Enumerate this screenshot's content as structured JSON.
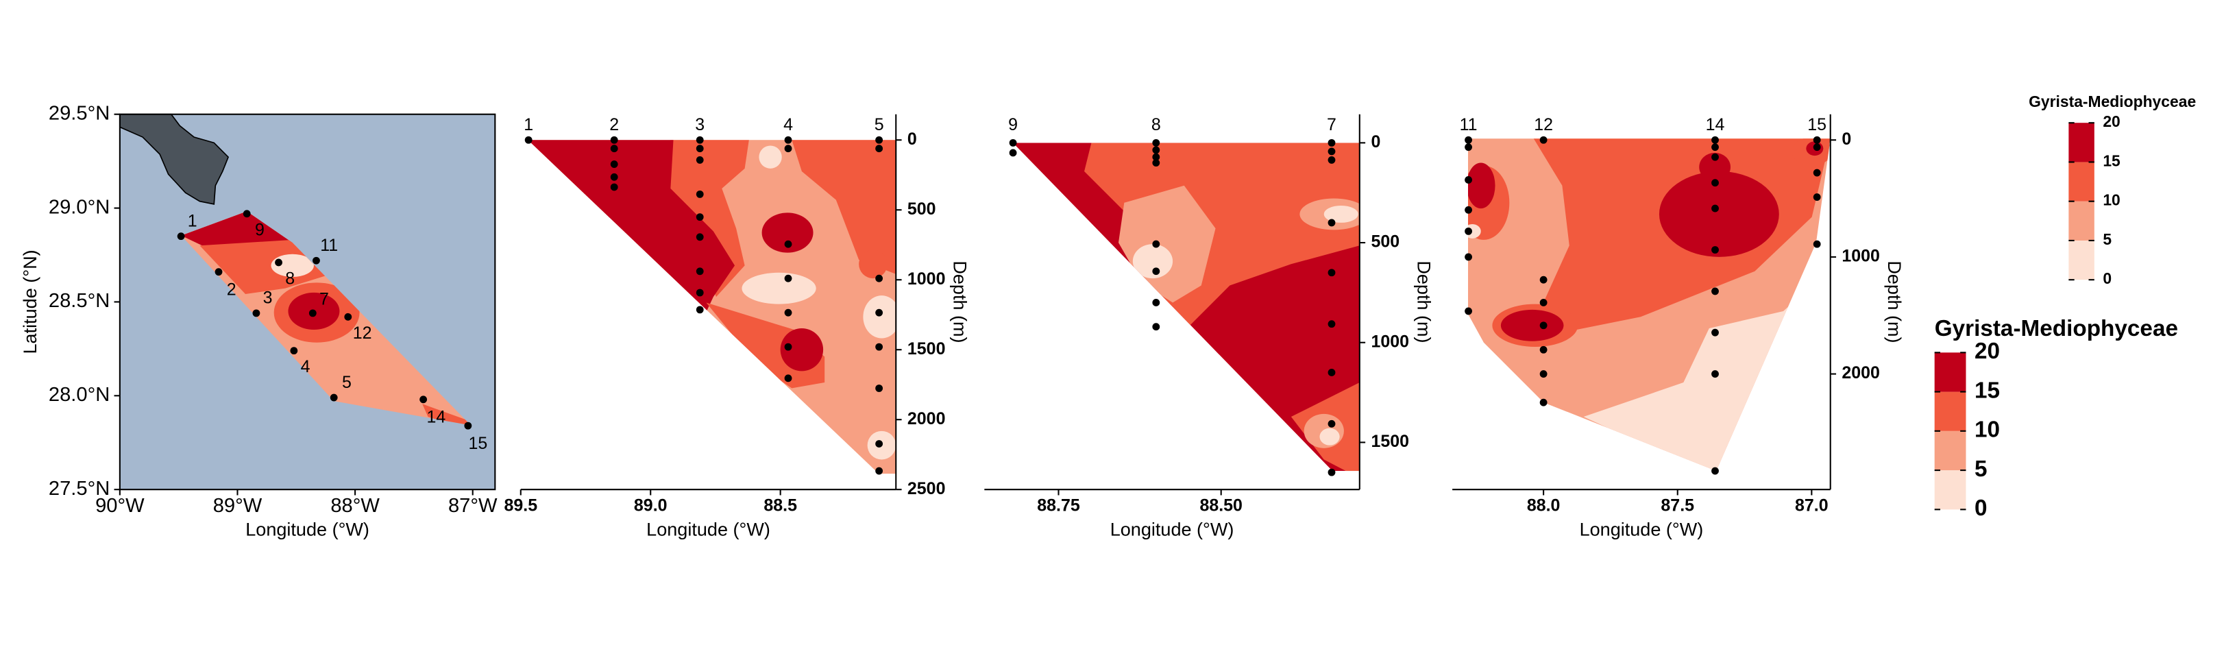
{
  "chart_data": [
    {
      "type": "map",
      "xlabel": "Longitude (°W)",
      "ylabel": "Latitude (°N)",
      "sea_color": "#a5b8cf",
      "land_color": "#4b535b",
      "xlim": [
        -90,
        -86.81
      ],
      "ylim": [
        27.5,
        29.5
      ],
      "xticks": [
        {
          "value": -90,
          "label": "90°W"
        },
        {
          "value": -89,
          "label": "89°W"
        },
        {
          "value": -88,
          "label": "88°W"
        },
        {
          "value": -87,
          "label": "87°W"
        }
      ],
      "yticks": [
        {
          "value": 27.5,
          "label": "27.5°N"
        },
        {
          "value": 28,
          "label": "28.0°N"
        },
        {
          "value": 28.5,
          "label": "28.5°N"
        },
        {
          "value": 29,
          "label": "29.0°N"
        },
        {
          "value": 29.5,
          "label": "29.5°N"
        }
      ],
      "stations": [
        {
          "label": "1",
          "lon": -89.48,
          "lat": 28.85
        },
        {
          "label": "9",
          "lon": -88.92,
          "lat": 28.97
        },
        {
          "label": "11",
          "lon": -88.33,
          "lat": 28.72
        },
        {
          "label": "2",
          "lon": -89.16,
          "lat": 28.66
        },
        {
          "label": "3",
          "lon": -88.84,
          "lat": 28.44
        },
        {
          "label": "8",
          "lon": -88.65,
          "lat": 28.71
        },
        {
          "label": "7",
          "lon": -88.36,
          "lat": 28.44
        },
        {
          "label": "12",
          "lon": -88.06,
          "lat": 28.42
        },
        {
          "label": "4",
          "lon": -88.52,
          "lat": 28.24
        },
        {
          "label": "5",
          "lon": -88.18,
          "lat": 27.99
        },
        {
          "label": "14",
          "lon": -87.42,
          "lat": 27.98
        },
        {
          "label": "15",
          "lon": -87.04,
          "lat": 27.84
        }
      ]
    },
    {
      "type": "section",
      "xlabel": "Longitude (°W)",
      "ylabel": "Depth (m)",
      "xlim": [
        89.5,
        88.055
      ],
      "ylim": [
        2500,
        -184
      ],
      "xticks": [
        89.5,
        {
          "value": 89,
          "label": "89.0"
        },
        88.5
      ],
      "yticks": [
        0,
        500,
        1000,
        1500,
        2000,
        2500
      ],
      "stations": [
        {
          "label": "1",
          "lon": 89.47,
          "depths": [
            0
          ]
        },
        {
          "label": "2",
          "lon": 89.14,
          "depths": [
            0,
            61,
            173,
            265,
            337
          ]
        },
        {
          "label": "3",
          "lon": 88.81,
          "depths": [
            0,
            61,
            143,
            388,
            551,
            694,
            939,
            1092,
            1214
          ]
        },
        {
          "label": "4",
          "lon": 88.47,
          "depths": [
            0,
            61,
            745,
            990,
            1235,
            1480,
            1704
          ]
        },
        {
          "label": "5",
          "lon": 88.12,
          "depths": [
            0,
            61,
            990,
            1235,
            1480,
            1776,
            2173,
            2367
          ]
        }
      ]
    },
    {
      "type": "section",
      "xlabel": "Longitude (°W)",
      "ylabel": "Depth (m)",
      "xlim": [
        88.864,
        88.287
      ],
      "ylim": [
        1736,
        -143
      ],
      "xticks": [
        88.75,
        {
          "value": 88.5,
          "label": "88.50"
        }
      ],
      "yticks": [
        0,
        500,
        1000,
        1500
      ],
      "stations": [
        {
          "label": "9",
          "lon": 88.82,
          "depths": [
            0,
            50
          ]
        },
        {
          "label": "8",
          "lon": 88.6,
          "depths": [
            0,
            36,
            71,
            100,
            507,
            643,
            800,
            921
          ]
        },
        {
          "label": "7",
          "lon": 88.33,
          "depths": [
            0,
            43,
            86,
            400,
            650,
            907,
            1150,
            1407,
            1650
          ]
        }
      ]
    },
    {
      "type": "section",
      "xlabel": "Longitude (°W)",
      "ylabel": "Depth (m)",
      "xlim": [
        88.34,
        86.93
      ],
      "ylim": [
        2988,
        -220
      ],
      "xticks": [
        {
          "value": 88,
          "label": "88.0"
        },
        87.5,
        {
          "value": 87,
          "label": "87.0"
        }
      ],
      "yticks": [
        0,
        1000,
        2000
      ],
      "stations": [
        {
          "label": "11",
          "lon": 88.28,
          "depths": [
            0,
            61,
            341,
            598,
            780,
            1000,
            1463
          ]
        },
        {
          "label": "12",
          "lon": 88.0,
          "depths": [
            0,
            1195,
            1390,
            1585,
            1793,
            2000,
            2244
          ]
        },
        {
          "label": "14",
          "lon": 87.36,
          "depths": [
            0,
            61,
            146,
            366,
            585,
            939,
            1293,
            1646,
            2000,
            2829
          ]
        },
        {
          "label": "15",
          "lon": 86.98,
          "depths": [
            0,
            61,
            280,
            488,
            890
          ]
        }
      ]
    }
  ],
  "legends": [
    {
      "title": "Gyrista-Mediophyceae",
      "breaks": [
        0,
        5,
        10,
        15,
        20
      ],
      "colors": [
        "#fde0d2",
        "#f7a083",
        "#f25a3e",
        "#c0001a"
      ]
    },
    {
      "title": "Gyrista-Mediophyceae",
      "breaks": [
        0,
        5,
        10,
        15,
        20
      ],
      "colors": [
        "#fde0d2",
        "#f7a083",
        "#f25a3e",
        "#c0001a"
      ]
    }
  ]
}
